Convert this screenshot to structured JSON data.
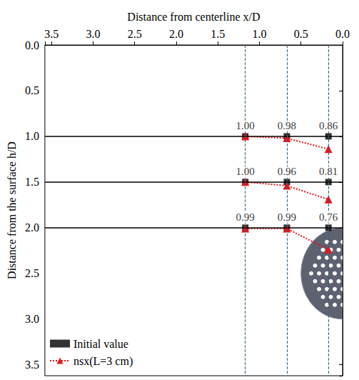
{
  "chart_data": {
    "type": "scatter",
    "x_label": "Distance from centerline x/D",
    "y_label": "Distance from the surface h/D",
    "xlim": [
      3.58,
      0
    ],
    "ylim": [
      3.62,
      0
    ],
    "xticks": [
      {
        "value": 0,
        "label": "0.0"
      },
      0.5,
      {
        "value": 1,
        "label": "1.0"
      },
      1.5,
      {
        "value": 2,
        "label": "2.0"
      },
      2.5,
      {
        "value": 3,
        "label": "3.0"
      },
      3.5
    ],
    "yticks": [
      {
        "value": 0,
        "label": "0.0"
      },
      0.5,
      {
        "value": 1,
        "label": "1.0"
      },
      1.5,
      {
        "value": 2,
        "label": "2.0"
      },
      2.5,
      {
        "value": 3,
        "label": "3.0"
      },
      3.5
    ],
    "series": [
      {
        "name": "Initial value",
        "type": "scatter",
        "color": "#000000",
        "marker": "square",
        "x": [
          1.17,
          0.67,
          0.17,
          1.17,
          0.67,
          0.17,
          1.17,
          0.67,
          0.17
        ],
        "y": [
          1.0,
          1.0,
          1.0,
          1.5,
          1.5,
          1.5,
          2.0,
          2.0,
          2.0
        ]
      },
      {
        "name": "nsx(L=3 cm)",
        "type": "line",
        "color": "#e8141b",
        "marker": "triangle",
        "line_style": "dotted",
        "x": [
          1.17,
          0.67,
          0.17,
          null,
          1.17,
          0.67,
          0.17,
          null,
          1.17,
          0.67,
          0.17
        ],
        "y": [
          1.0,
          1.02,
          1.14,
          null,
          1.5,
          1.54,
          1.69,
          null,
          2.01,
          2.01,
          2.24
        ]
      }
    ],
    "hlines": [
      1.0,
      1.5,
      2.0
    ],
    "vlines": [
      1.17,
      0.67,
      0.17
    ],
    "annotations": [
      {
        "text": "1.00",
        "x": 1.17,
        "y": 1.0
      },
      {
        "text": "0.98",
        "x": 0.67,
        "y": 1.0
      },
      {
        "text": "0.86",
        "x": 0.17,
        "y": 1.0
      },
      {
        "text": "1.00",
        "x": 1.17,
        "y": 1.5
      },
      {
        "text": "0.96",
        "x": 0.67,
        "y": 1.5
      },
      {
        "text": "0.81",
        "x": 0.17,
        "y": 1.5
      },
      {
        "text": "0.99",
        "x": 1.17,
        "y": 2.0
      },
      {
        "text": "0.99",
        "x": 0.67,
        "y": 2.0
      },
      {
        "text": "0.76",
        "x": 0.17,
        "y": 2.0
      }
    ],
    "legend": "lower left",
    "grid": false
  }
}
